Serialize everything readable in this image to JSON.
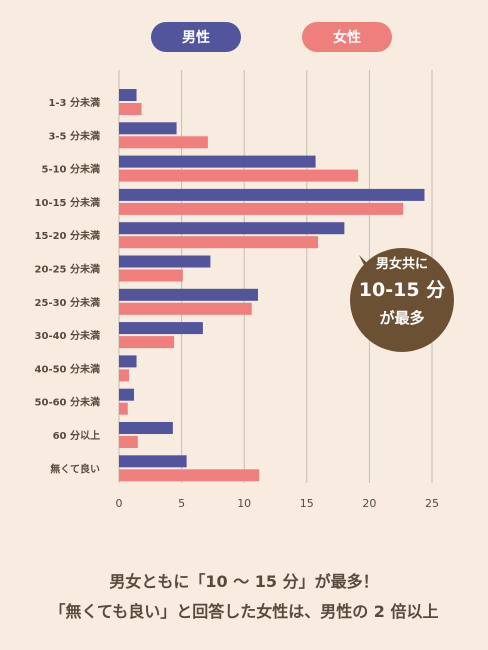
{
  "legend": {
    "male": "男性",
    "female": "女性"
  },
  "colors": {
    "male": "#52549c",
    "female": "#ee7f7c",
    "grid": "#c9bdb2",
    "text": "#5a4a3e",
    "callout": "#6b5034"
  },
  "chart_data": {
    "type": "bar",
    "orientation": "horizontal",
    "categories": [
      "1-3 分未満",
      "3-5 分未満",
      "5-10 分未満",
      "10-15 分未満",
      "15-20 分未満",
      "20-25 分未満",
      "25-30 分未満",
      "30-40 分未満",
      "40-50 分未満",
      "50-60 分未満",
      "60 分以上",
      "無くて良い"
    ],
    "series": [
      {
        "name": "男性",
        "values": [
          1.4,
          4.6,
          15.7,
          24.4,
          18.0,
          7.3,
          11.1,
          6.7,
          1.4,
          1.2,
          4.3,
          5.4
        ]
      },
      {
        "name": "女性",
        "values": [
          1.8,
          7.1,
          19.1,
          22.7,
          15.9,
          5.1,
          10.6,
          4.4,
          0.8,
          0.7,
          1.5,
          11.2
        ]
      }
    ],
    "xlim": [
      0,
      25
    ],
    "xticks": [
      0,
      5,
      10,
      15,
      20,
      25
    ],
    "grid": true,
    "legend_position": "top"
  },
  "callout": {
    "line1": "男女共に",
    "line2": "10-15 分",
    "line3": "が最多"
  },
  "caption": {
    "line1": "男女ともに「10 〜 15 分」が最多！",
    "line2": "「無くても良い」と回答した女性は、男性の 2 倍以上"
  }
}
